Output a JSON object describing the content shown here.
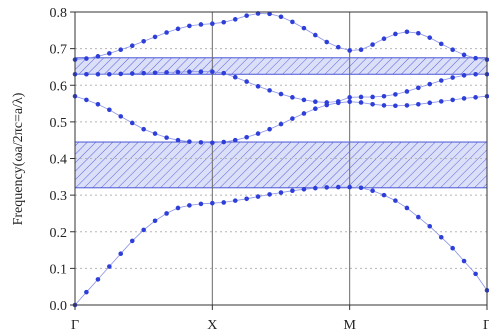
{
  "chart_data": {
    "type": "scatter",
    "title": "",
    "xlabel": "",
    "ylabel": "Frequency(ωa/2πc=a/λ)",
    "x_ticks": [
      {
        "pos": 0,
        "label": "Γ"
      },
      {
        "pos": 1,
        "label": "X"
      },
      {
        "pos": 2,
        "label": "M"
      },
      {
        "pos": 3,
        "label": "Γ"
      }
    ],
    "xlim": [
      0,
      3
    ],
    "ylim": [
      0,
      0.8
    ],
    "y_ticks": [
      0.0,
      0.1,
      0.2,
      0.3,
      0.4,
      0.5,
      0.6,
      0.7,
      0.8
    ],
    "y_tick_labels": [
      "0.0",
      "0.1",
      "0.2",
      "0.3",
      "0.4",
      "0.5",
      "0.6",
      "0.7",
      "0.8"
    ],
    "grid": {
      "horizontal": "dotted",
      "vertical_at_ticks": true
    },
    "band_gaps": [
      {
        "from": 0.32,
        "to": 0.445
      },
      {
        "from": 0.63,
        "to": 0.675
      }
    ],
    "series": [
      {
        "points": [
          [
            0,
            0
          ],
          [
            0.083,
            0.035
          ],
          [
            0.167,
            0.07
          ],
          [
            0.25,
            0.105
          ],
          [
            0.333,
            0.14
          ],
          [
            0.417,
            0.175
          ],
          [
            0.5,
            0.205
          ],
          [
            0.583,
            0.23
          ],
          [
            0.667,
            0.25
          ],
          [
            0.75,
            0.265
          ],
          [
            0.833,
            0.272
          ],
          [
            0.917,
            0.276
          ],
          [
            1,
            0.278
          ],
          [
            1.083,
            0.28
          ],
          [
            1.167,
            0.285
          ],
          [
            1.25,
            0.29
          ],
          [
            1.333,
            0.296
          ],
          [
            1.417,
            0.302
          ],
          [
            1.5,
            0.307
          ],
          [
            1.583,
            0.312
          ],
          [
            1.667,
            0.316
          ],
          [
            1.75,
            0.319
          ],
          [
            1.833,
            0.321
          ],
          [
            1.917,
            0.322
          ],
          [
            2,
            0.322
          ],
          [
            2.083,
            0.32
          ],
          [
            2.167,
            0.312
          ],
          [
            2.25,
            0.3
          ],
          [
            2.333,
            0.285
          ],
          [
            2.417,
            0.265
          ],
          [
            2.5,
            0.24
          ],
          [
            2.583,
            0.215
          ],
          [
            2.667,
            0.185
          ],
          [
            2.75,
            0.155
          ],
          [
            2.833,
            0.12
          ],
          [
            2.917,
            0.085
          ],
          [
            3,
            0.04
          ]
        ]
      },
      {
        "points": [
          [
            0,
            0.57
          ],
          [
            0.083,
            0.56
          ],
          [
            0.167,
            0.548
          ],
          [
            0.25,
            0.533
          ],
          [
            0.333,
            0.515
          ],
          [
            0.417,
            0.497
          ],
          [
            0.5,
            0.48
          ],
          [
            0.583,
            0.468
          ],
          [
            0.667,
            0.457
          ],
          [
            0.75,
            0.45
          ],
          [
            0.833,
            0.446
          ],
          [
            0.917,
            0.444
          ],
          [
            1,
            0.443
          ],
          [
            1.083,
            0.445
          ],
          [
            1.167,
            0.45
          ],
          [
            1.25,
            0.458
          ],
          [
            1.333,
            0.468
          ],
          [
            1.417,
            0.48
          ],
          [
            1.5,
            0.494
          ],
          [
            1.583,
            0.509
          ],
          [
            1.667,
            0.523
          ],
          [
            1.75,
            0.536
          ],
          [
            1.833,
            0.546
          ],
          [
            1.917,
            0.552
          ],
          [
            2,
            0.555
          ],
          [
            2.083,
            0.553
          ],
          [
            2.167,
            0.548
          ],
          [
            2.25,
            0.545
          ],
          [
            2.333,
            0.544
          ],
          [
            2.417,
            0.545
          ],
          [
            2.5,
            0.548
          ],
          [
            2.583,
            0.552
          ],
          [
            2.667,
            0.556
          ],
          [
            2.75,
            0.56
          ],
          [
            2.833,
            0.564
          ],
          [
            2.917,
            0.567
          ],
          [
            3,
            0.57
          ]
        ]
      },
      {
        "points": [
          [
            0,
            0.63
          ],
          [
            0.083,
            0.63
          ],
          [
            0.167,
            0.63
          ],
          [
            0.25,
            0.63
          ],
          [
            0.333,
            0.631
          ],
          [
            0.417,
            0.632
          ],
          [
            0.5,
            0.633
          ],
          [
            0.583,
            0.634
          ],
          [
            0.667,
            0.635
          ],
          [
            0.75,
            0.636
          ],
          [
            0.833,
            0.637
          ],
          [
            0.917,
            0.637
          ],
          [
            1,
            0.637
          ],
          [
            1.083,
            0.633
          ],
          [
            1.167,
            0.622
          ],
          [
            1.25,
            0.61
          ],
          [
            1.333,
            0.597
          ],
          [
            1.417,
            0.586
          ],
          [
            1.5,
            0.576
          ],
          [
            1.583,
            0.567
          ],
          [
            1.667,
            0.56
          ],
          [
            1.75,
            0.555
          ],
          [
            1.833,
            0.553
          ],
          [
            1.917,
            0.556
          ],
          [
            2,
            0.567
          ],
          [
            2.083,
            0.568
          ],
          [
            2.167,
            0.568
          ],
          [
            2.25,
            0.57
          ],
          [
            2.333,
            0.575
          ],
          [
            2.417,
            0.583
          ],
          [
            2.5,
            0.593
          ],
          [
            2.583,
            0.603
          ],
          [
            2.667,
            0.613
          ],
          [
            2.75,
            0.621
          ],
          [
            2.833,
            0.627
          ],
          [
            2.917,
            0.63
          ],
          [
            3,
            0.63
          ]
        ]
      },
      {
        "points": [
          [
            0,
            0.67
          ],
          [
            0.083,
            0.673
          ],
          [
            0.167,
            0.679
          ],
          [
            0.25,
            0.687
          ],
          [
            0.333,
            0.697
          ],
          [
            0.417,
            0.708
          ],
          [
            0.5,
            0.72
          ],
          [
            0.583,
            0.732
          ],
          [
            0.667,
            0.744
          ],
          [
            0.75,
            0.754
          ],
          [
            0.833,
            0.762
          ],
          [
            0.917,
            0.766
          ],
          [
            1,
            0.768
          ],
          [
            1.083,
            0.772
          ],
          [
            1.167,
            0.78
          ],
          [
            1.25,
            0.79
          ],
          [
            1.333,
            0.796
          ],
          [
            1.417,
            0.795
          ],
          [
            1.5,
            0.787
          ],
          [
            1.583,
            0.773
          ],
          [
            1.667,
            0.756
          ],
          [
            1.75,
            0.737
          ],
          [
            1.833,
            0.718
          ],
          [
            1.917,
            0.704
          ],
          [
            2,
            0.695
          ],
          [
            2.083,
            0.697
          ],
          [
            2.167,
            0.711
          ],
          [
            2.25,
            0.727
          ],
          [
            2.333,
            0.74
          ],
          [
            2.417,
            0.746
          ],
          [
            2.5,
            0.742
          ],
          [
            2.583,
            0.73
          ],
          [
            2.667,
            0.713
          ],
          [
            2.75,
            0.697
          ],
          [
            2.833,
            0.683
          ],
          [
            2.917,
            0.674
          ],
          [
            3,
            0.67
          ]
        ]
      }
    ]
  },
  "colors": {
    "marker": "#2e3fd9",
    "connector": "#8a93e8",
    "band_fill": "#dcdff8",
    "band_hatch": "#5563dd",
    "band_edge": "#4a57d6",
    "axis": "#333333",
    "grid": "#b5b5b5",
    "vline": "#6b6b6b"
  }
}
